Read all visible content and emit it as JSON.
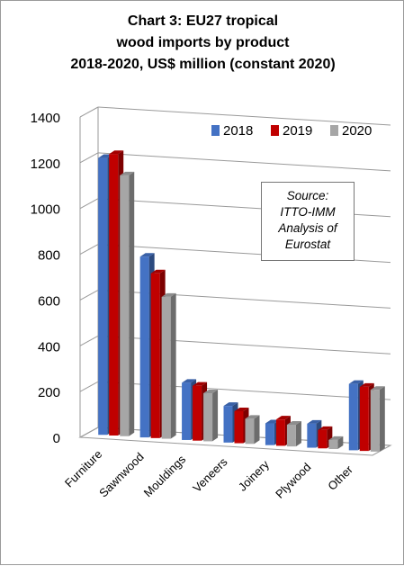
{
  "chart_data": {
    "type": "bar",
    "title_lines": [
      "Chart 3: EU27 tropical",
      "wood imports by product",
      "2018-2020, US$ million (constant 2020)"
    ],
    "categories": [
      "Furniture",
      "Sawnwood",
      "Mouldings",
      "Veneers",
      "Joinery",
      "Plywood",
      "Other"
    ],
    "series": [
      {
        "name": "2018",
        "color": "#4472c4",
        "values": [
          1210,
          790,
          250,
          160,
          95,
          105,
          290
        ]
      },
      {
        "name": "2019",
        "color": "#c00000",
        "values": [
          1230,
          720,
          240,
          140,
          115,
          80,
          280
        ]
      },
      {
        "name": "2020",
        "color": "#a6a6a6",
        "values": [
          1140,
          620,
          210,
          110,
          95,
          40,
          270
        ]
      }
    ],
    "yticks": [
      "0",
      "200",
      "400",
      "600",
      "800",
      "1000",
      "1200",
      "1400"
    ],
    "ylim": [
      0,
      1400
    ],
    "legend_position": "top-right",
    "grid": true,
    "annotation": [
      "Source:",
      "ITTO-IMM",
      "Analysis of",
      "Eurostat"
    ]
  }
}
